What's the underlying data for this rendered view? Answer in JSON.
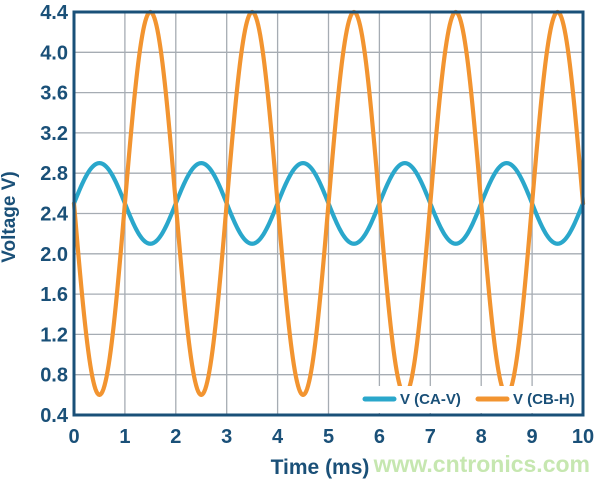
{
  "chart_data": {
    "type": "line",
    "title": "",
    "xlabel": "Time (ms)",
    "ylabel": "Voltage V)",
    "xlim": [
      0,
      10
    ],
    "ylim": [
      0.4,
      4.4
    ],
    "x_ticks": [
      "0",
      "1",
      "2",
      "3",
      "4",
      "5",
      "6",
      "7",
      "8",
      "9",
      "10"
    ],
    "y_ticks": [
      "0.4",
      "0.8",
      "1.2",
      "1.6",
      "2.0",
      "2.4",
      "2.8",
      "3.2",
      "3.6",
      "4.0",
      "4.4"
    ],
    "grid": true,
    "legend_position": "inside-bottom-right",
    "colors": {
      "axis_text": "#1A5078",
      "border": "#1A5078",
      "grid": "#A6ACB3",
      "legend_background": "#FFFFFF",
      "plot_background": "#FFFFFF"
    },
    "series": [
      {
        "name": "V (CA-V)",
        "color": "#2AA7CB",
        "waveform": "sine",
        "offset_v": 2.5,
        "amplitude_v": 0.4,
        "period_ms": 2,
        "phase_deg": 0,
        "key_points": {
          "value_at_0ms": 2.5,
          "max_v": 2.9,
          "min_v": 2.1,
          "maxima_at_ms": [
            0.5,
            2.5,
            4.5,
            6.5,
            8.5
          ],
          "minima_at_ms": [
            1.5,
            3.5,
            5.5,
            7.5,
            9.5
          ]
        }
      },
      {
        "name": "V (CB-H)",
        "color": "#F29430",
        "waveform": "sine",
        "offset_v": 2.5,
        "amplitude_v": 1.9,
        "period_ms": 2,
        "phase_deg": 180,
        "key_points": {
          "value_at_0ms": 2.5,
          "max_v": 4.4,
          "min_v": 0.6,
          "maxima_at_ms": [
            1.5,
            3.5,
            5.5,
            7.5,
            9.5
          ],
          "minima_at_ms": [
            0.5,
            2.5,
            4.5,
            6.5,
            8.5
          ]
        }
      }
    ]
  },
  "watermark": {
    "text": "www.cntronics.com",
    "color": "#C6E7B0"
  }
}
